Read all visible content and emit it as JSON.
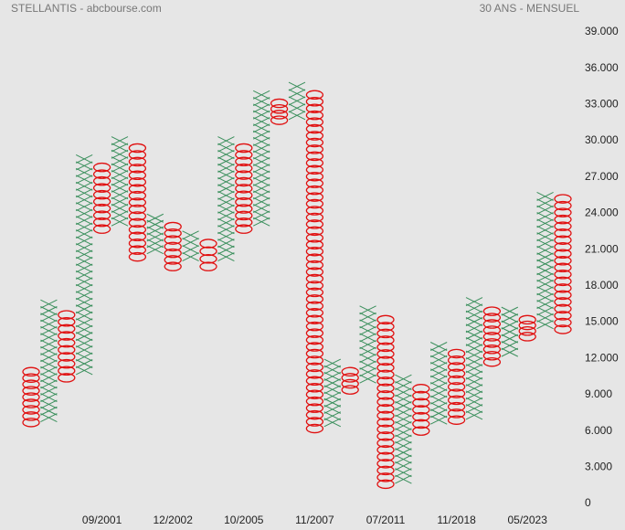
{
  "chart_data": {
    "type": "point_and_figure",
    "title": "STELLANTIS - abcbourse.com",
    "subtitle": "30 ANS - MENSUEL",
    "x_color": "#3a8f5c",
    "o_color": "#e01010",
    "ylim": [
      0,
      39
    ],
    "yticks": [
      0,
      {
        "value": 3,
        "label": "3.000"
      },
      {
        "value": 6,
        "label": "6.000"
      },
      {
        "value": 9,
        "label": "9.000"
      },
      {
        "value": 12,
        "label": "12.000"
      },
      {
        "value": 15,
        "label": "15.000"
      },
      {
        "value": 18,
        "label": "18.000"
      },
      {
        "value": 21,
        "label": "21.000"
      },
      {
        "value": 24,
        "label": "24.000"
      },
      {
        "value": 27,
        "label": "27.000"
      },
      {
        "value": 30,
        "label": "30.000"
      },
      {
        "value": 33,
        "label": "33.000"
      },
      {
        "value": 36,
        "label": "36.000"
      },
      {
        "value": 39,
        "label": "39.000"
      }
    ],
    "categories": [
      null,
      null,
      null,
      null,
      "09/2001",
      null,
      null,
      null,
      "12/2002",
      null,
      null,
      null,
      "10/2005",
      null,
      null,
      null,
      "11/2007",
      null,
      null,
      null,
      "07/2011",
      null,
      null,
      null,
      "11/2018",
      null,
      null,
      null,
      "05/2023",
      null,
      null
    ],
    "columns": [
      {
        "symbol": "O",
        "high": 10.9,
        "low": 6.7
      },
      {
        "symbol": "X",
        "high": 16.5,
        "low": 7.1
      },
      {
        "symbol": "O",
        "high": 15.6,
        "low": 10.4
      },
      {
        "symbol": "X",
        "high": 28.5,
        "low": 11.0
      },
      {
        "symbol": "O",
        "high": 27.8,
        "low": 22.7
      },
      {
        "symbol": "X",
        "high": 30.0,
        "low": 23.3
      },
      {
        "symbol": "O",
        "high": 29.4,
        "low": 20.4
      },
      {
        "symbol": "X",
        "high": 23.6,
        "low": 21.0
      },
      {
        "symbol": "O",
        "high": 22.9,
        "low": 19.6
      },
      {
        "symbol": "X",
        "high": 22.2,
        "low": 20.4
      },
      {
        "symbol": "O",
        "high": 21.5,
        "low": 19.6
      },
      {
        "symbol": "X",
        "high": 30.0,
        "low": 20.4
      },
      {
        "symbol": "O",
        "high": 29.4,
        "low": 22.7
      },
      {
        "symbol": "X",
        "high": 33.8,
        "low": 23.3
      },
      {
        "symbol": "O",
        "high": 33.1,
        "low": 31.7
      },
      {
        "symbol": "X",
        "high": 34.5,
        "low": 32.1
      },
      {
        "symbol": "O",
        "high": 33.8,
        "low": 6.2
      },
      {
        "symbol": "X",
        "high": 11.6,
        "low": 6.7
      },
      {
        "symbol": "O",
        "high": 10.9,
        "low": 9.4
      },
      {
        "symbol": "X",
        "high": 16.0,
        "low": 10.3
      },
      {
        "symbol": "O",
        "high": 15.2,
        "low": 1.6
      },
      {
        "symbol": "X",
        "high": 10.3,
        "low": 2.0
      },
      {
        "symbol": "O",
        "high": 9.5,
        "low": 6.0
      },
      {
        "symbol": "X",
        "high": 13.0,
        "low": 6.9
      },
      {
        "symbol": "O",
        "high": 12.4,
        "low": 6.9
      },
      {
        "symbol": "X",
        "high": 16.7,
        "low": 7.3
      },
      {
        "symbol": "O",
        "high": 15.9,
        "low": 11.7
      },
      {
        "symbol": "X",
        "high": 15.9,
        "low": 12.5
      },
      {
        "symbol": "O",
        "high": 15.2,
        "low": 13.8
      },
      {
        "symbol": "X",
        "high": 25.4,
        "low": 14.8
      },
      {
        "symbol": "O",
        "high": 25.2,
        "low": 14.4
      }
    ]
  }
}
